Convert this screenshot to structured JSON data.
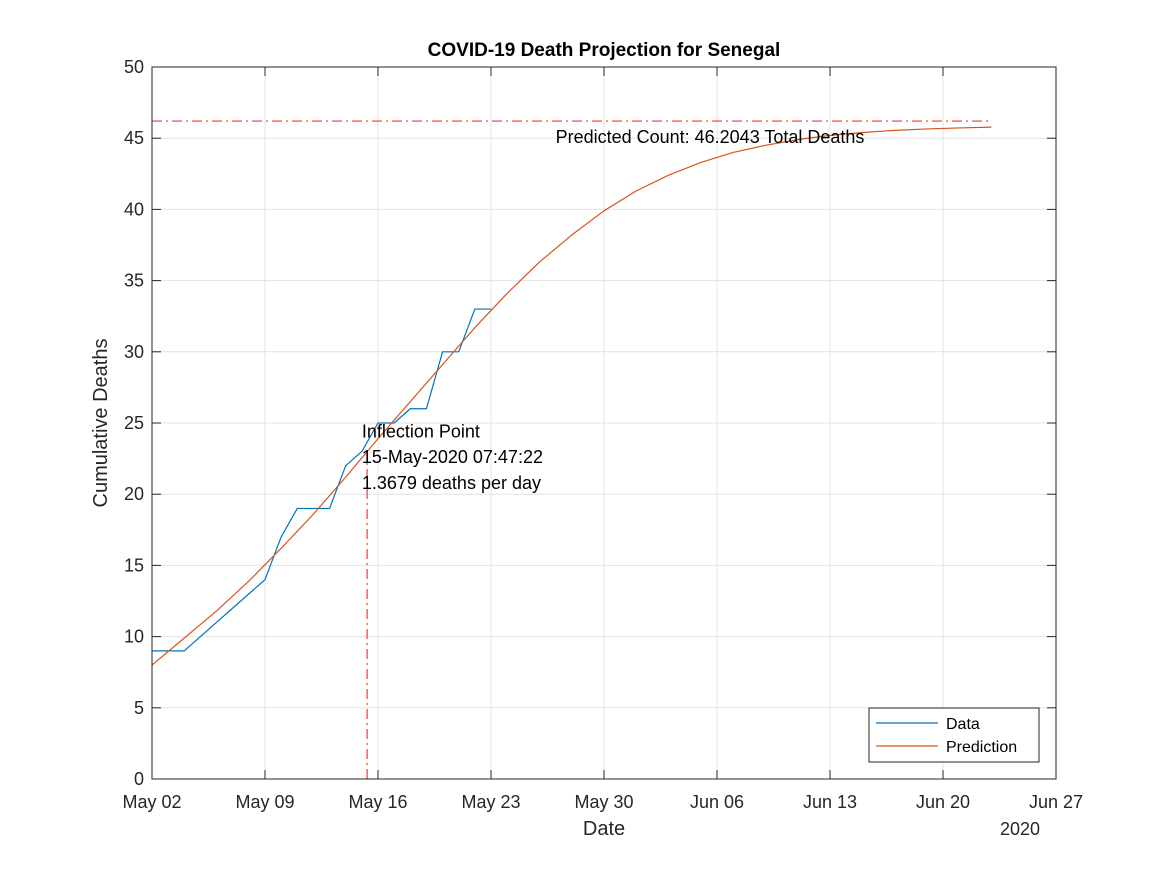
{
  "chart_data": {
    "type": "line",
    "title": "COVID-19 Death Projection for Senegal",
    "xlabel": "Date",
    "ylabel": "Cumulative Deaths",
    "x_axis_year": "2020",
    "xlim": [
      "2020-05-02",
      "2020-06-27"
    ],
    "ylim": [
      0,
      50
    ],
    "x_ticks": [
      {
        "date": "2020-05-02",
        "label": "May 02"
      },
      {
        "date": "2020-05-09",
        "label": "May 09"
      },
      {
        "date": "2020-05-16",
        "label": "May 16"
      },
      {
        "date": "2020-05-23",
        "label": "May 23"
      },
      {
        "date": "2020-05-30",
        "label": "May 30"
      },
      {
        "date": "2020-06-06",
        "label": "Jun 06"
      },
      {
        "date": "2020-06-13",
        "label": "Jun 13"
      },
      {
        "date": "2020-06-20",
        "label": "Jun 20"
      },
      {
        "date": "2020-06-27",
        "label": "Jun 27"
      }
    ],
    "y_ticks": [
      0,
      5,
      10,
      15,
      20,
      25,
      30,
      35,
      40,
      45,
      50
    ],
    "grid": true,
    "legend_position": "bottom-right",
    "series": [
      {
        "name": "Data",
        "color": "#0072BD",
        "points": [
          [
            "2020-05-02",
            9
          ],
          [
            "2020-05-03",
            9
          ],
          [
            "2020-05-04",
            9
          ],
          [
            "2020-05-05",
            10
          ],
          [
            "2020-05-06",
            11
          ],
          [
            "2020-05-07",
            12
          ],
          [
            "2020-05-08",
            13
          ],
          [
            "2020-05-09",
            14
          ],
          [
            "2020-05-10",
            17
          ],
          [
            "2020-05-11",
            19
          ],
          [
            "2020-05-12",
            19
          ],
          [
            "2020-05-13",
            19
          ],
          [
            "2020-05-14",
            22
          ],
          [
            "2020-05-15",
            23
          ],
          [
            "2020-05-16",
            25
          ],
          [
            "2020-05-17",
            25
          ],
          [
            "2020-05-18",
            26
          ],
          [
            "2020-05-19",
            26
          ],
          [
            "2020-05-20",
            30
          ],
          [
            "2020-05-21",
            30
          ],
          [
            "2020-05-22",
            33
          ],
          [
            "2020-05-23",
            33
          ]
        ]
      },
      {
        "name": "Prediction",
        "color": "#D95319",
        "points": [
          [
            "2020-05-02",
            8.0
          ],
          [
            "2020-05-04",
            9.9
          ],
          [
            "2020-05-06",
            11.8
          ],
          [
            "2020-05-08",
            13.9
          ],
          [
            "2020-05-10",
            16.2
          ],
          [
            "2020-05-12",
            18.6
          ],
          [
            "2020-05-14",
            21.2
          ],
          [
            "2020-05-16",
            23.9
          ],
          [
            "2020-05-18",
            26.5
          ],
          [
            "2020-05-20",
            29.1
          ],
          [
            "2020-05-22",
            31.7
          ],
          [
            "2020-05-24",
            34.1
          ],
          [
            "2020-05-26",
            36.3
          ],
          [
            "2020-05-28",
            38.2
          ],
          [
            "2020-05-30",
            39.9
          ],
          [
            "2020-06-01",
            41.3
          ],
          [
            "2020-06-03",
            42.4
          ],
          [
            "2020-06-05",
            43.3
          ],
          [
            "2020-06-07",
            44.0
          ],
          [
            "2020-06-09",
            44.5
          ],
          [
            "2020-06-11",
            44.9
          ],
          [
            "2020-06-13",
            45.2
          ],
          [
            "2020-06-15",
            45.4
          ],
          [
            "2020-06-17",
            45.55
          ],
          [
            "2020-06-19",
            45.65
          ],
          [
            "2020-06-21",
            45.72
          ],
          [
            "2020-06-23",
            45.78
          ]
        ]
      }
    ],
    "reference_lines": [
      {
        "kind": "horizontal",
        "y": 46.2043,
        "x_end": "2020-06-23",
        "color": "#FF3333",
        "style": "dash-dot"
      },
      {
        "kind": "vertical",
        "x": "2020-05-15T07:47:22",
        "y_end": 23.0,
        "color": "#FF3333",
        "style": "dash-dot"
      }
    ],
    "annotations": {
      "predicted_count": {
        "text": "Predicted Count: 46.2043 Total Deaths",
        "x": "2020-05-27",
        "y": 45.1
      },
      "inflection_line1": {
        "text": "Inflection Point",
        "x": "2020-05-15",
        "y": 24.4
      },
      "inflection_line2": {
        "text": "15-May-2020 07:47:22",
        "x": "2020-05-15",
        "y": 22.6
      },
      "inflection_line3": {
        "text": "1.3679 deaths per day",
        "x": "2020-05-15",
        "y": 20.8
      }
    }
  }
}
